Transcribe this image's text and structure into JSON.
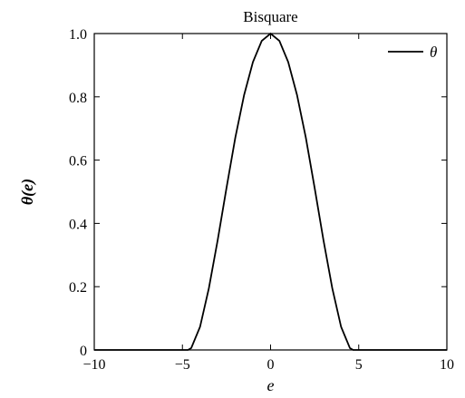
{
  "chart_data": {
    "type": "line",
    "title": "Bisquare",
    "xlabel": "e",
    "ylabel": "θ(e)",
    "xlim": [
      -10,
      10
    ],
    "ylim": [
      0,
      1
    ],
    "x_ticks": [
      -10,
      -5,
      0,
      5,
      10
    ],
    "x_tick_labels": [
      "−10",
      "−5",
      "0",
      "5",
      "10"
    ],
    "y_ticks": [
      0,
      0.2,
      0.4,
      0.6,
      0.8,
      1.0
    ],
    "y_tick_labels": [
      "0",
      "0.2",
      "0.4",
      "0.6",
      "0.8",
      "1.0"
    ],
    "grid": false,
    "legend_position": "top-right",
    "series": [
      {
        "name": "θ",
        "color": "#000000",
        "x": [
          -10,
          -4.685,
          -4.5,
          -4.0,
          -3.5,
          -3.0,
          -2.5,
          -2.0,
          -1.5,
          -1.0,
          -0.5,
          0,
          0.5,
          1.0,
          1.5,
          2.0,
          2.5,
          3.0,
          3.5,
          4.0,
          4.5,
          4.685,
          10
        ],
        "y": [
          0,
          0,
          0.006,
          0.073,
          0.195,
          0.347,
          0.512,
          0.671,
          0.806,
          0.91,
          0.977,
          1.0,
          0.977,
          0.91,
          0.806,
          0.671,
          0.512,
          0.347,
          0.195,
          0.073,
          0.006,
          0,
          0
        ]
      }
    ]
  }
}
